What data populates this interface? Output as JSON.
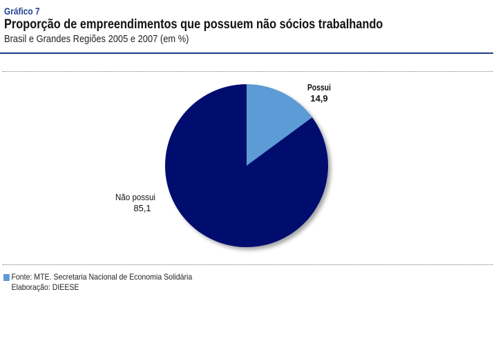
{
  "header": {
    "graph_number": "Gráfico 7",
    "title": "Proporção de empreendimentos que possuem não sócios trabalhando",
    "subtitle": "Brasil e Grandes Regiões 2005 e 2007 (em %)"
  },
  "colors": {
    "accent": "#1a3f8a",
    "slice_possui": "#5b9bd5",
    "slice_nao_possui": "#000a6e"
  },
  "chart_data": {
    "type": "pie",
    "title": "Proporção de empreendimentos que possuem não sócios trabalhando",
    "subtitle": "Brasil e Grandes Regiões 2005 e 2007 (em %)",
    "slices": [
      {
        "label": "Possui",
        "value": 14.9,
        "value_text": "14,9",
        "color": "#5b9bd5"
      },
      {
        "label": "Não possui",
        "value": 85.1,
        "value_text": "85,1",
        "color": "#000a6e"
      }
    ],
    "start_angle": "12 o'clock",
    "direction": "clockwise"
  },
  "footer": {
    "source": "Fonte: MTE. Secretaria Nacional de Economia Solidária",
    "elaboration": "Elaboração: DIEESE"
  }
}
